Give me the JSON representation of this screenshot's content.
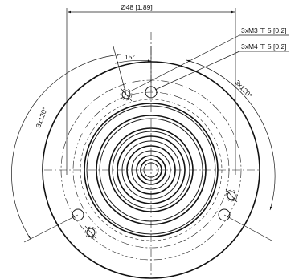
{
  "labels": {
    "diameter": "Ø48 [1.89]",
    "thread_m3": "3xM3 ⊤ 5 [0.2]",
    "thread_m4": "3xM4 ⊤ 5 [0.2]",
    "angle_15": "15°",
    "angle_120_left": "3x120°",
    "angle_120_right": "3x120°"
  }
}
